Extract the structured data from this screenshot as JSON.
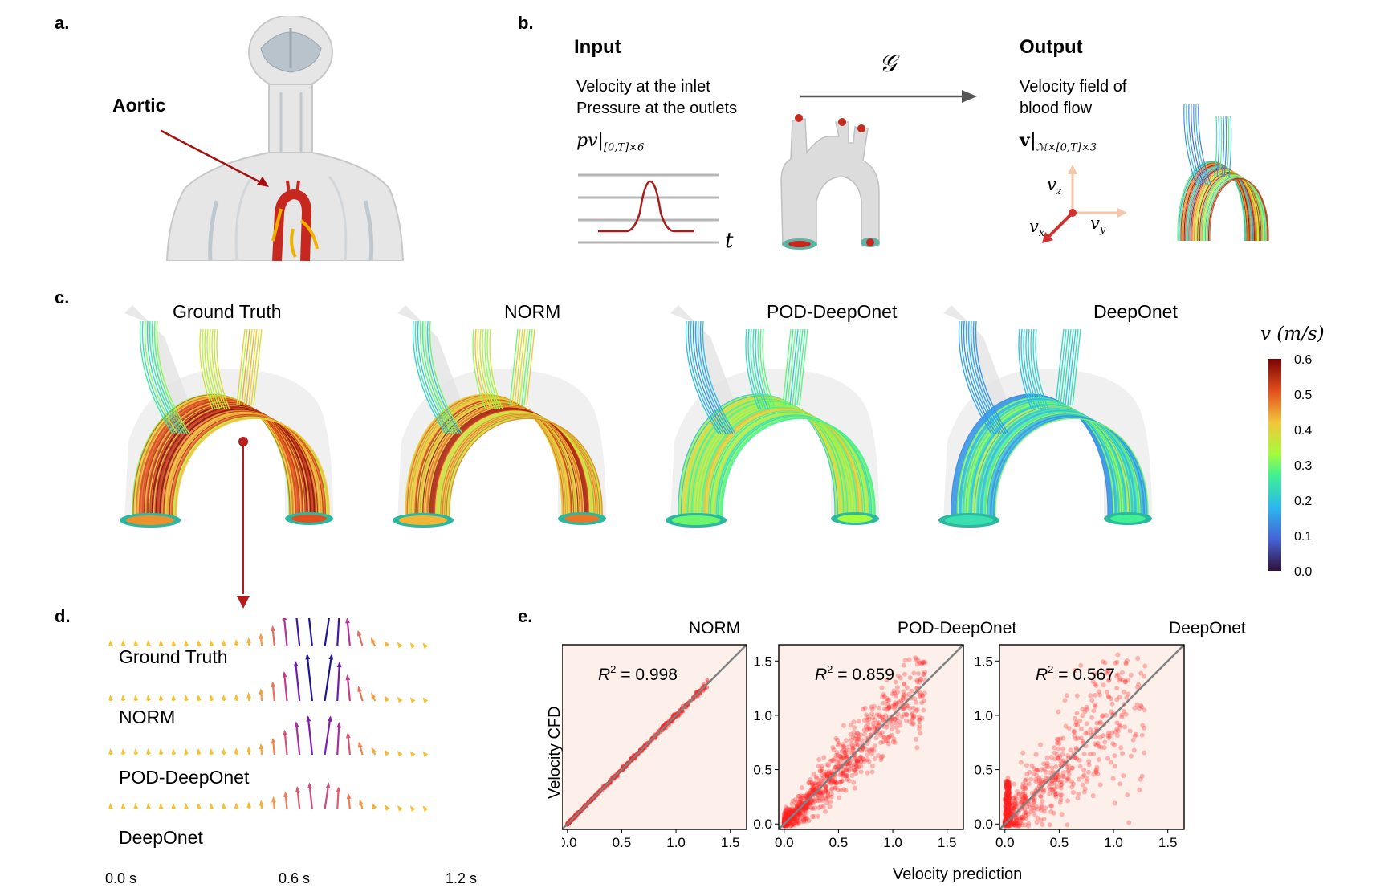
{
  "panel_labels": {
    "a": "a.",
    "b": "b.",
    "c": "c.",
    "d": "d.",
    "e": "e."
  },
  "panel_a": {
    "label": "Aortic"
  },
  "panel_b": {
    "input_title": "Input",
    "input_line1": "Velocity at the inlet",
    "input_line2": "Pressure at the outlets",
    "input_math": "pv|",
    "input_math_sub": "[0,T]×6",
    "time_label": "t",
    "operator": "𝒢",
    "output_title": "Output",
    "output_line1": "Velocity field of",
    "output_line2": "blood flow",
    "output_math": "v|",
    "output_math_sub": "ℳ×[0,T]×3",
    "axis_z": "v",
    "axis_z_sub": "z",
    "axis_y": "v",
    "axis_y_sub": "y",
    "axis_x": "v",
    "axis_x_sub": "x"
  },
  "panel_c": {
    "methods": [
      "Ground Truth",
      "NORM",
      "POD-DeepOnet",
      "DeepOnet"
    ],
    "colorbar_label": "v (m/s)",
    "colorbar_ticks": [
      "0.6",
      "0.5",
      "0.4",
      "0.3",
      "0.2",
      "0.1",
      "0.0"
    ],
    "colors": {
      "low": "#30123b",
      "mid": "#a4fc3c",
      "high": "#7a0403"
    }
  },
  "panel_d": {
    "rows": [
      "Ground Truth",
      "NORM",
      "POD-DeepOnet",
      "DeepOnet"
    ],
    "peak_scale": [
      1.0,
      0.9,
      0.72,
      0.45
    ],
    "time_ticks": [
      "0.0 s",
      "0.6 s",
      "1.2 s"
    ]
  },
  "panel_e": {
    "ylabel": "Velocity CFD",
    "xlabel": "Velocity prediction",
    "colors": {
      "background": "#fdf0ea",
      "points": "#ff2020",
      "diagonal": "#808080"
    }
  },
  "chart_data": [
    {
      "type": "scatter",
      "title": "NORM",
      "annotation": "R² = 0.998",
      "r2_prefix": "R",
      "r2_value": "= 0.998",
      "xlim": [
        -0.05,
        1.65
      ],
      "ylim": [
        -0.05,
        1.65
      ],
      "xticks": [
        "0.0",
        "0.5",
        "1.0",
        "1.5"
      ],
      "yticks": [
        "0.0",
        "0.5",
        "1.0",
        "1.5"
      ],
      "r2": 0.998,
      "spread": 0.01
    },
    {
      "type": "scatter",
      "title": "POD-DeepOnet",
      "annotation": "R² = 0.859",
      "r2_prefix": "R",
      "r2_value": "= 0.859",
      "xlim": [
        -0.05,
        1.65
      ],
      "ylim": [
        -0.05,
        1.65
      ],
      "xticks": [
        "0.0",
        "0.5",
        "1.0",
        "1.5"
      ],
      "yticks": [
        "0.0",
        "0.5",
        "1.0",
        "1.5"
      ],
      "r2": 0.859,
      "spread": 0.13
    },
    {
      "type": "scatter",
      "title": "DeepOnet",
      "annotation": "R² = 0.567",
      "r2_prefix": "R",
      "r2_value": "= 0.567",
      "xlim": [
        -0.05,
        1.65
      ],
      "ylim": [
        -0.05,
        1.65
      ],
      "xticks": [
        "0.0",
        "0.5",
        "1.0",
        "1.5"
      ],
      "yticks": [
        "0.0",
        "0.5",
        "1.0",
        "1.5"
      ],
      "r2": 0.567,
      "spread": 0.26
    }
  ]
}
